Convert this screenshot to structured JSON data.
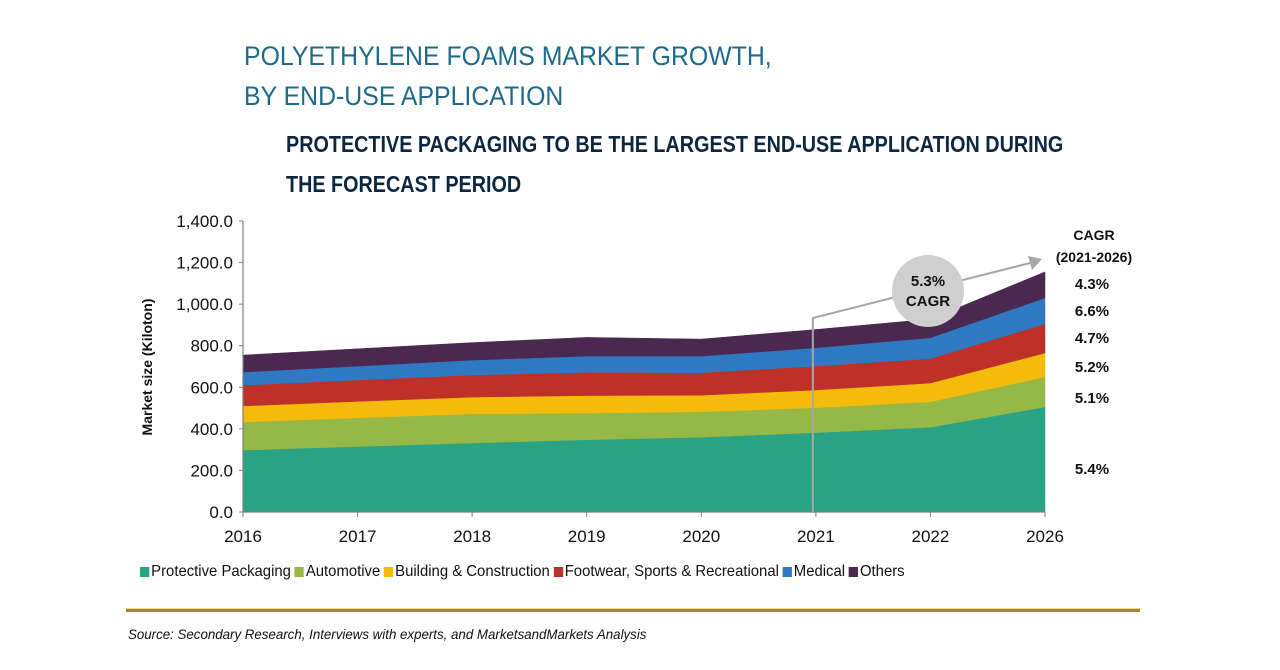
{
  "header": {
    "title_line1": "POLYETHYLENE FOAMS MARKET GROWTH,",
    "title_line2": "BY END-USE APPLICATION",
    "subtitle_line1": "PROTECTIVE PACKAGING TO BE THE LARGEST END-USE APPLICATION DURING",
    "subtitle_line2": "THE FORECAST PERIOD"
  },
  "chart_data": {
    "type": "area",
    "stacked": true,
    "title": "POLYETHYLENE FOAMS MARKET GROWTH, BY END-USE APPLICATION",
    "subtitle": "PROTECTIVE PACKAGING TO BE THE LARGEST END-USE APPLICATION DURING THE FORECAST PERIOD",
    "xlabel": "",
    "ylabel": "Market size (Kiloton)",
    "ylim": [
      0,
      1400
    ],
    "yticks": [
      "0.0",
      "200.0",
      "400.0",
      "600.0",
      "800.0",
      "1,000.0",
      "1,200.0",
      "1,400.0"
    ],
    "categories": [
      "2016",
      "2017",
      "2018",
      "2019",
      "2020",
      "2021",
      "2022",
      "2026"
    ],
    "grid": false,
    "legend_position": "bottom",
    "series": [
      {
        "name": "Protective Packaging",
        "color": "#2aa384",
        "values": [
          298,
          315,
          332,
          348,
          360,
          382,
          408,
          505
        ]
      },
      {
        "name": "Automotive",
        "color": "#96b847",
        "values": [
          135,
          138,
          140,
          128,
          122,
          120,
          122,
          145
        ]
      },
      {
        "name": "Building & Construction",
        "color": "#f5bb0b",
        "values": [
          77,
          79,
          81,
          84,
          80,
          85,
          90,
          115
        ]
      },
      {
        "name": "Footwear, Sports & Recreational",
        "color": "#be3128",
        "values": [
          100,
          103,
          106,
          112,
          108,
          115,
          118,
          140
        ]
      },
      {
        "name": "Medical",
        "color": "#2f78c2",
        "values": [
          63,
          67,
          72,
          78,
          80,
          88,
          100,
          125
        ]
      },
      {
        "name": "Others",
        "color": "#4a2850",
        "values": [
          82,
          83,
          84,
          90,
          82,
          88,
          90,
          125
        ]
      }
    ],
    "annotations": {
      "cagr_bubble": {
        "value": "5.3%",
        "label": "CAGR"
      },
      "cagr_header_line1": "CAGR",
      "cagr_header_line2": "(2021-2026)",
      "cagr_by_series": [
        {
          "series": "Others",
          "value": "4.3%"
        },
        {
          "series": "Medical",
          "value": "6.6%"
        },
        {
          "series": "Footwear, Sports & Recreational",
          "value": "4.7%"
        },
        {
          "series": "Building & Construction",
          "value": "5.2%"
        },
        {
          "series": "Automotive",
          "value": "5.1%"
        },
        {
          "series": "Protective Packaging",
          "value": "5.4%"
        }
      ]
    }
  },
  "legend": [
    {
      "label": "Protective Packaging",
      "color": "#2aa384"
    },
    {
      "label": "Automotive",
      "color": "#96b847"
    },
    {
      "label": "Building & Construction",
      "color": "#f5bb0b"
    },
    {
      "label": "Footwear, Sports & Recreational",
      "color": "#be3128"
    },
    {
      "label": "Medical",
      "color": "#2f78c2"
    },
    {
      "label": "Others",
      "color": "#4a2850"
    }
  ],
  "footer": {
    "source": "Source: Secondary Research, Interviews with experts, and MarketsandMarkets Analysis"
  }
}
